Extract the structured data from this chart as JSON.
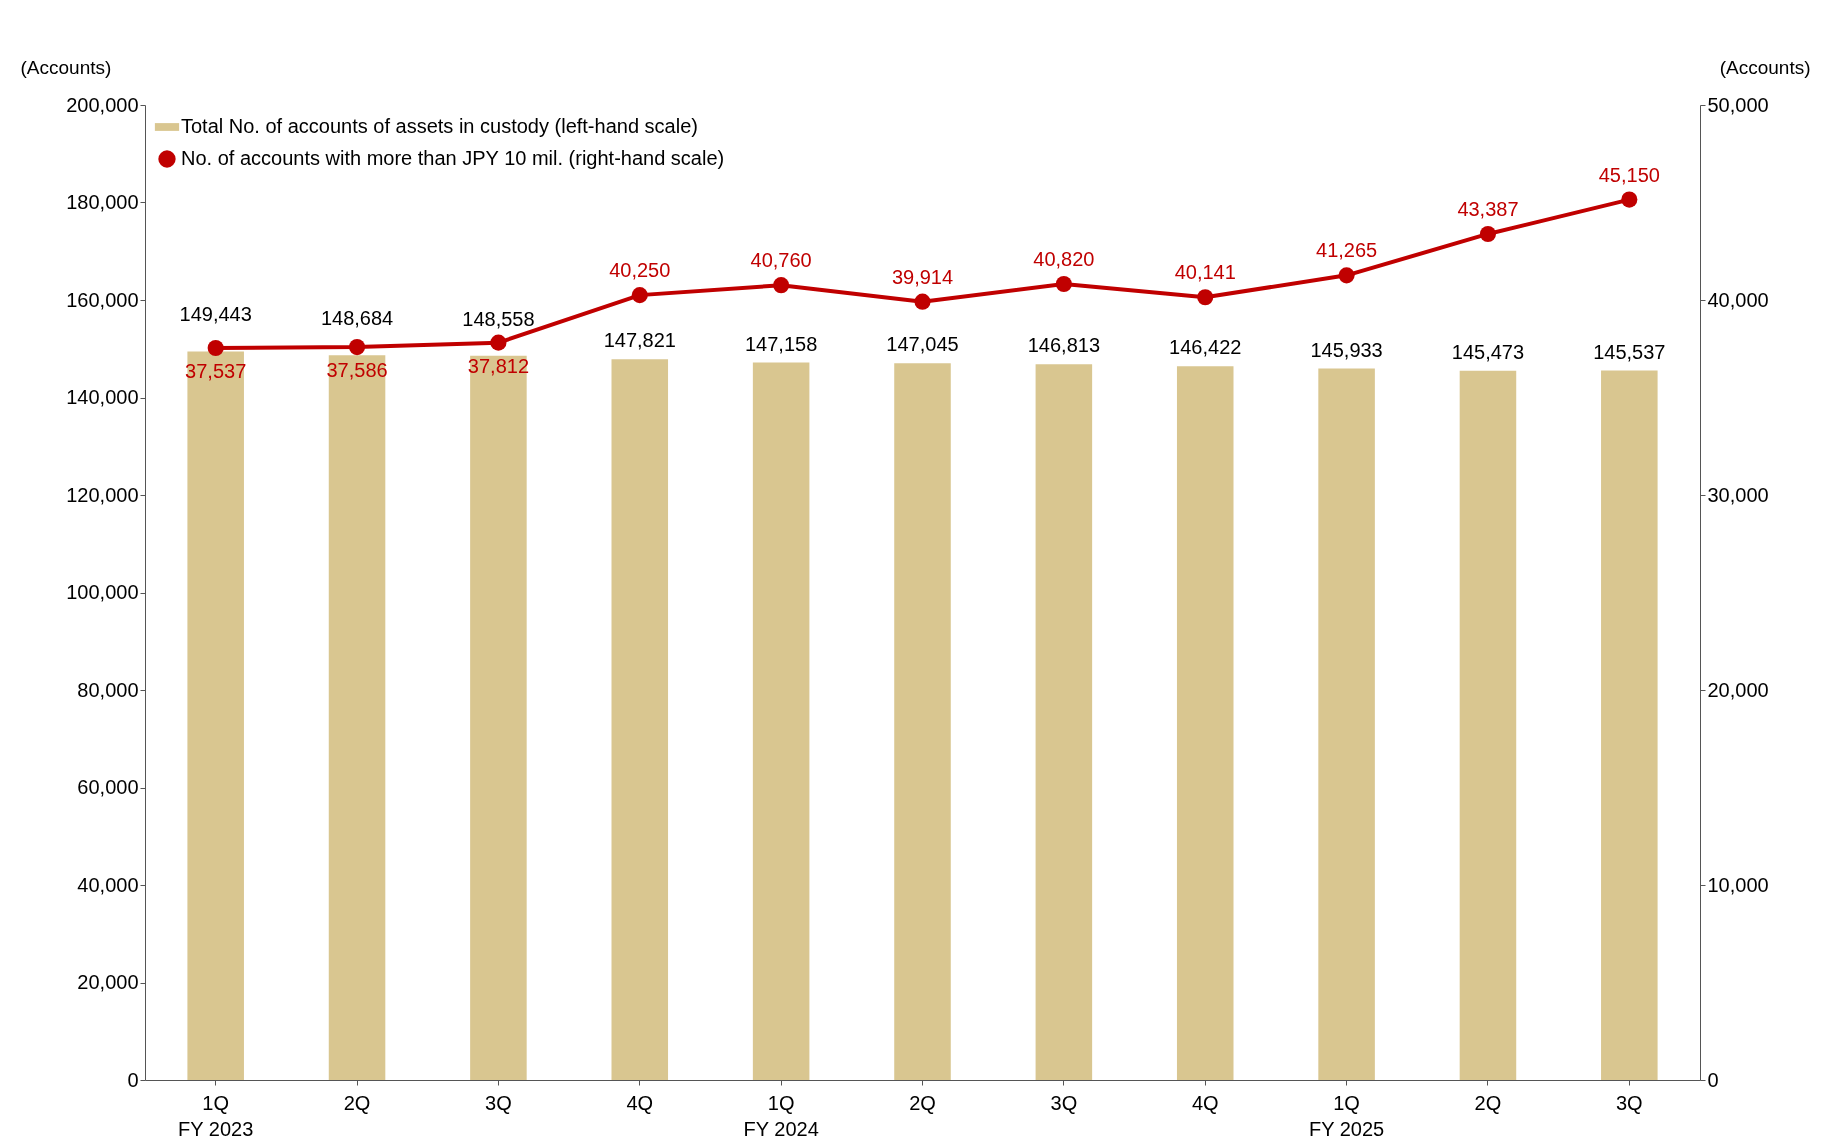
{
  "chart_data": {
    "type": "bar",
    "ylabel": "(Accounts)",
    "y2label": "(Accounts)",
    "categories": [
      "1Q\nFY 2023",
      "2Q",
      "3Q",
      "4Q",
      "1Q\nFY 2024",
      "2Q",
      "3Q",
      "4Q",
      "1Q\nFY 2025",
      "2Q",
      "3Q"
    ],
    "series": [
      {
        "name": "Total No. of accounts of assets in custody (left-hand scale)",
        "color": "#d9c690",
        "values": [
          149443,
          148684,
          148558,
          147821,
          147158,
          147045,
          146813,
          146422,
          145933,
          145473,
          145537
        ],
        "value_labels": [
          "149,443",
          "148,684",
          "148,558",
          "147,821",
          "147,158",
          "147,045",
          "146,813",
          "146,422",
          "145,933",
          "145,473",
          "145,537"
        ]
      },
      {
        "name": "No. of accounts with more than JPY 10 mil. (right-hand scale)",
        "type": "line",
        "axis": "y2",
        "color": "#c00000",
        "values": [
          37537,
          37586,
          37812,
          40250,
          40760,
          39914,
          40820,
          40141,
          41265,
          43387,
          45150
        ],
        "value_labels": [
          "37,537",
          "37,586",
          "37,812",
          "40,250",
          "40,760",
          "39,914",
          "40,820",
          "40,141",
          "41,265",
          "43,387",
          "45,150"
        ]
      }
    ],
    "ylim": [
      0,
      200000
    ],
    "yticks": [
      0,
      {
        "value": 20000,
        "label": "20,000"
      },
      {
        "value": 40000,
        "label": "40,000"
      },
      {
        "value": 60000,
        "label": "60,000"
      },
      {
        "value": 80000,
        "label": "80,000"
      },
      {
        "value": 100000,
        "label": "100,000"
      },
      {
        "value": 120000,
        "label": "120,000"
      },
      {
        "value": 140000,
        "label": "140,000"
      },
      {
        "value": 160000,
        "label": "160,000"
      },
      {
        "value": 180000,
        "label": "180,000"
      },
      {
        "value": 200000,
        "label": "200,000"
      }
    ],
    "y2lim": [
      0,
      50000
    ],
    "y2ticks": [
      0,
      {
        "value": 10000,
        "label": "10,000"
      },
      {
        "value": 20000,
        "label": "20,000"
      },
      {
        "value": 30000,
        "label": "30,000"
      },
      {
        "value": 40000,
        "label": "40,000"
      },
      {
        "value": 50000,
        "label": "50,000"
      }
    ],
    "grid": false,
    "legend": "top left",
    "marker": "circle",
    "line_style": "solid"
  }
}
